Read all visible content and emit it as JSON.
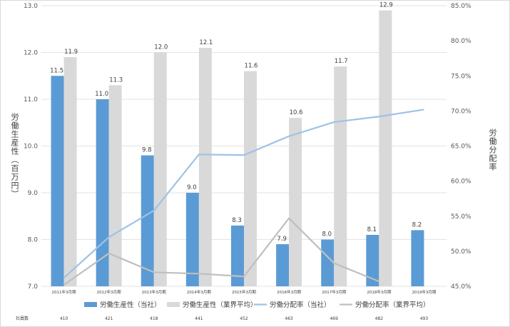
{
  "chart_data": {
    "type": "bar",
    "categories": [
      "2011年3月期",
      "2012年3月期",
      "2013年3月期",
      "2014年3月期",
      "2015年3月期",
      "2016年3月期",
      "2017年3月期",
      "2018年3月期",
      "2019年3月期"
    ],
    "ylabel": "労働生産性（百万円）",
    "y2label": "労働分配率",
    "ylim": [
      7.0,
      13.0
    ],
    "y2lim": [
      0.45,
      0.85
    ],
    "yticks": [
      "7.0",
      "8.0",
      "9.0",
      "10.0",
      "11.0",
      "12.0",
      "13.0"
    ],
    "y2ticks": [
      "45.0%",
      "50.0%",
      "55.0%",
      "60.0%",
      "65.0%",
      "70.0%",
      "75.0%",
      "80.0%",
      "85.0%"
    ],
    "grid": true,
    "legend_position": "bottom",
    "series": [
      {
        "name": "労働生産性（当社）",
        "kind": "bar",
        "axis": "left",
        "color": "#5b9bd5",
        "values": [
          11.5,
          11.0,
          9.8,
          9.0,
          8.3,
          7.9,
          8.0,
          8.1,
          8.2
        ],
        "labels": [
          "11.5",
          "11.0",
          "9.8",
          "9.0",
          "8.3",
          "7.9",
          "8.0",
          "8.1",
          "8.2"
        ]
      },
      {
        "name": "労働生産性（業界平均）",
        "kind": "bar",
        "axis": "left",
        "color": "#d9d9d9",
        "values": [
          11.9,
          11.3,
          12.0,
          12.1,
          11.6,
          10.6,
          11.7,
          12.9,
          null
        ],
        "labels": [
          "11.9",
          "11.3",
          "12.0",
          "12.1",
          "11.6",
          "10.6",
          "11.7",
          "12.9",
          ""
        ]
      },
      {
        "name": "労働分配率（当社）",
        "kind": "line",
        "axis": "right",
        "color": "#9dc3e6",
        "values": [
          0.462,
          0.52,
          0.558,
          0.638,
          0.637,
          0.664,
          0.684,
          0.692,
          0.702
        ]
      },
      {
        "name": "労働分配率（業界平均）",
        "kind": "line",
        "axis": "right",
        "color": "#bfbfbf",
        "values": [
          0.452,
          0.497,
          0.47,
          0.468,
          0.464,
          0.547,
          0.483,
          0.457,
          null
        ]
      }
    ],
    "employees": {
      "label": "社員数",
      "values": [
        "410",
        "421",
        "418",
        "441",
        "452",
        "463",
        "469",
        "482",
        "493"
      ]
    }
  }
}
